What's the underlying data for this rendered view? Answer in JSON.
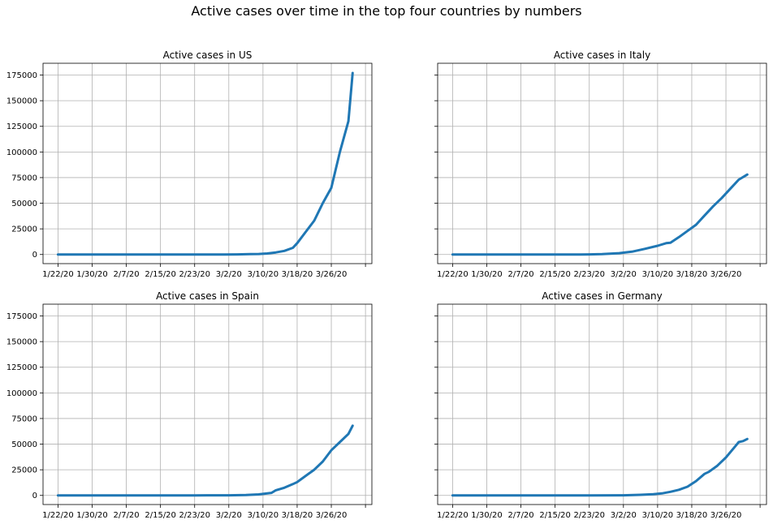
{
  "figure": {
    "title": "Active cases over time in the top four countries by numbers"
  },
  "style": {
    "line_color": "#1f77b4",
    "grid_color": "#b0b0b0",
    "axis_color": "#000000"
  },
  "chart_data": [
    {
      "type": "line",
      "title": "Active cases in US",
      "xlabel": "",
      "ylabel": "",
      "grid": true,
      "x_ticks": [
        "1/22/20",
        "1/30/20",
        "2/7/20",
        "2/15/20",
        "2/23/20",
        "3/2/20",
        "3/10/20",
        "3/18/20",
        "3/26/20"
      ],
      "y_ticks": [
        0,
        25000,
        50000,
        75000,
        100000,
        125000,
        150000,
        175000
      ],
      "ylim": [
        -8900,
        186500
      ],
      "x": [
        "1/22/20",
        "1/30/20",
        "2/7/20",
        "2/15/20",
        "2/23/20",
        "3/1/20",
        "3/4/20",
        "3/7/20",
        "3/9/20",
        "3/11/20",
        "3/13/20",
        "3/15/20",
        "3/17/20",
        "3/18/20",
        "3/20/20",
        "3/22/20",
        "3/24/20",
        "3/26/20",
        "3/28/20",
        "3/30/20",
        "3/31/20"
      ],
      "values": [
        1,
        5,
        11,
        13,
        14,
        60,
        150,
        350,
        550,
        1000,
        2000,
        3500,
        6500,
        11000,
        22000,
        33000,
        50000,
        65000,
        100000,
        130000,
        177000
      ]
    },
    {
      "type": "line",
      "title": "Active cases in Italy",
      "xlabel": "",
      "ylabel": "",
      "grid": true,
      "x_ticks": [
        "1/22/20",
        "1/30/20",
        "2/7/20",
        "2/15/20",
        "2/23/20",
        "3/2/20",
        "3/10/20",
        "3/18/20",
        "3/26/20"
      ],
      "y_ticks": [
        0,
        25000,
        50000,
        75000,
        100000,
        125000,
        150000,
        175000
      ],
      "ylim": [
        -8900,
        186500
      ],
      "x": [
        "1/22/20",
        "1/30/20",
        "2/7/20",
        "2/15/20",
        "2/21/20",
        "2/23/20",
        "2/26/20",
        "3/1/20",
        "3/4/20",
        "3/7/20",
        "3/10/20",
        "3/12/20",
        "3/13/20",
        "3/15/20",
        "3/17/20",
        "3/19/20",
        "3/21/20",
        "3/23/20",
        "3/25/20",
        "3/27/20",
        "3/29/20",
        "3/31/20"
      ],
      "values": [
        0,
        0,
        3,
        3,
        20,
        130,
        400,
        1300,
        2700,
        5500,
        8500,
        11000,
        11500,
        17000,
        23000,
        29000,
        38000,
        47000,
        55000,
        64000,
        73000,
        78000
      ]
    },
    {
      "type": "line",
      "title": "Active cases in Spain",
      "xlabel": "",
      "ylabel": "",
      "grid": true,
      "x_ticks": [
        "1/22/20",
        "1/30/20",
        "2/7/20",
        "2/15/20",
        "2/23/20",
        "3/2/20",
        "3/10/20",
        "3/18/20",
        "3/26/20"
      ],
      "y_ticks": [
        0,
        25000,
        50000,
        75000,
        100000,
        125000,
        150000,
        175000
      ],
      "ylim": [
        -8900,
        186500
      ],
      "x": [
        "1/22/20",
        "1/30/20",
        "2/7/20",
        "2/15/20",
        "2/23/20",
        "3/2/20",
        "3/6/20",
        "3/9/20",
        "3/11/20",
        "3/12/20",
        "3/13/20",
        "3/15/20",
        "3/17/20",
        "3/18/20",
        "3/19/20",
        "3/21/20",
        "3/22/20",
        "3/24/20",
        "3/26/20",
        "3/28/20",
        "3/30/20",
        "3/31/20"
      ],
      "values": [
        0,
        0,
        2,
        2,
        2,
        110,
        400,
        1000,
        2000,
        2500,
        5000,
        7500,
        11000,
        13000,
        16000,
        22000,
        25000,
        33000,
        44000,
        52000,
        60000,
        68000
      ]
    },
    {
      "type": "line",
      "title": "Active cases in Germany",
      "xlabel": "",
      "ylabel": "",
      "grid": true,
      "x_ticks": [
        "1/22/20",
        "1/30/20",
        "2/7/20",
        "2/15/20",
        "2/23/20",
        "3/2/20",
        "3/10/20",
        "3/18/20",
        "3/26/20"
      ],
      "y_ticks": [
        0,
        25000,
        50000,
        75000,
        100000,
        125000,
        150000,
        175000
      ],
      "ylim": [
        -8900,
        186500
      ],
      "x": [
        "1/22/20",
        "1/30/20",
        "2/7/20",
        "2/15/20",
        "2/23/20",
        "3/2/20",
        "3/6/20",
        "3/9/20",
        "3/11/20",
        "3/13/20",
        "3/15/20",
        "3/17/20",
        "3/19/20",
        "3/21/20",
        "3/22/20",
        "3/24/20",
        "3/26/20",
        "3/28/20",
        "3/29/20",
        "3/30/20",
        "3/31/20"
      ],
      "values": [
        0,
        4,
        10,
        14,
        14,
        150,
        600,
        1200,
        1900,
        3500,
        5500,
        8500,
        14000,
        21000,
        23000,
        29000,
        37000,
        47000,
        52000,
        53000,
        55000
      ]
    }
  ]
}
